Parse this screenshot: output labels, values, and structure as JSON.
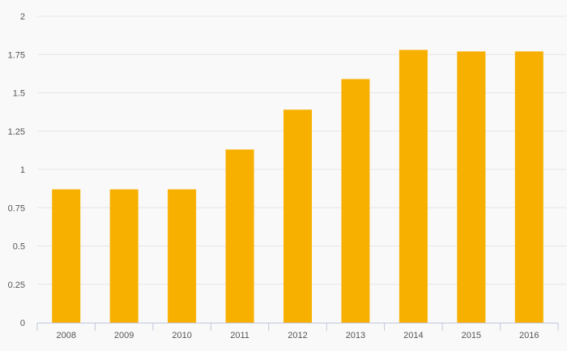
{
  "chart_data": {
    "type": "bar",
    "title": "",
    "xlabel": "",
    "ylabel": "",
    "categories": [
      "2008",
      "2009",
      "2010",
      "2011",
      "2012",
      "2013",
      "2014",
      "2015",
      "2016"
    ],
    "series": [
      {
        "values": [
          0.87,
          0.87,
          0.87,
          1.13,
          1.39,
          1.59,
          1.78,
          1.77,
          1.77
        ],
        "color": "#f8b000"
      }
    ],
    "ylim": [
      0,
      2
    ],
    "yticks": [
      "0",
      "0.25",
      "0.5",
      "0.75",
      "1",
      "1.25",
      "1.5",
      "1.75",
      "2"
    ],
    "grid": true,
    "legend": "none"
  }
}
